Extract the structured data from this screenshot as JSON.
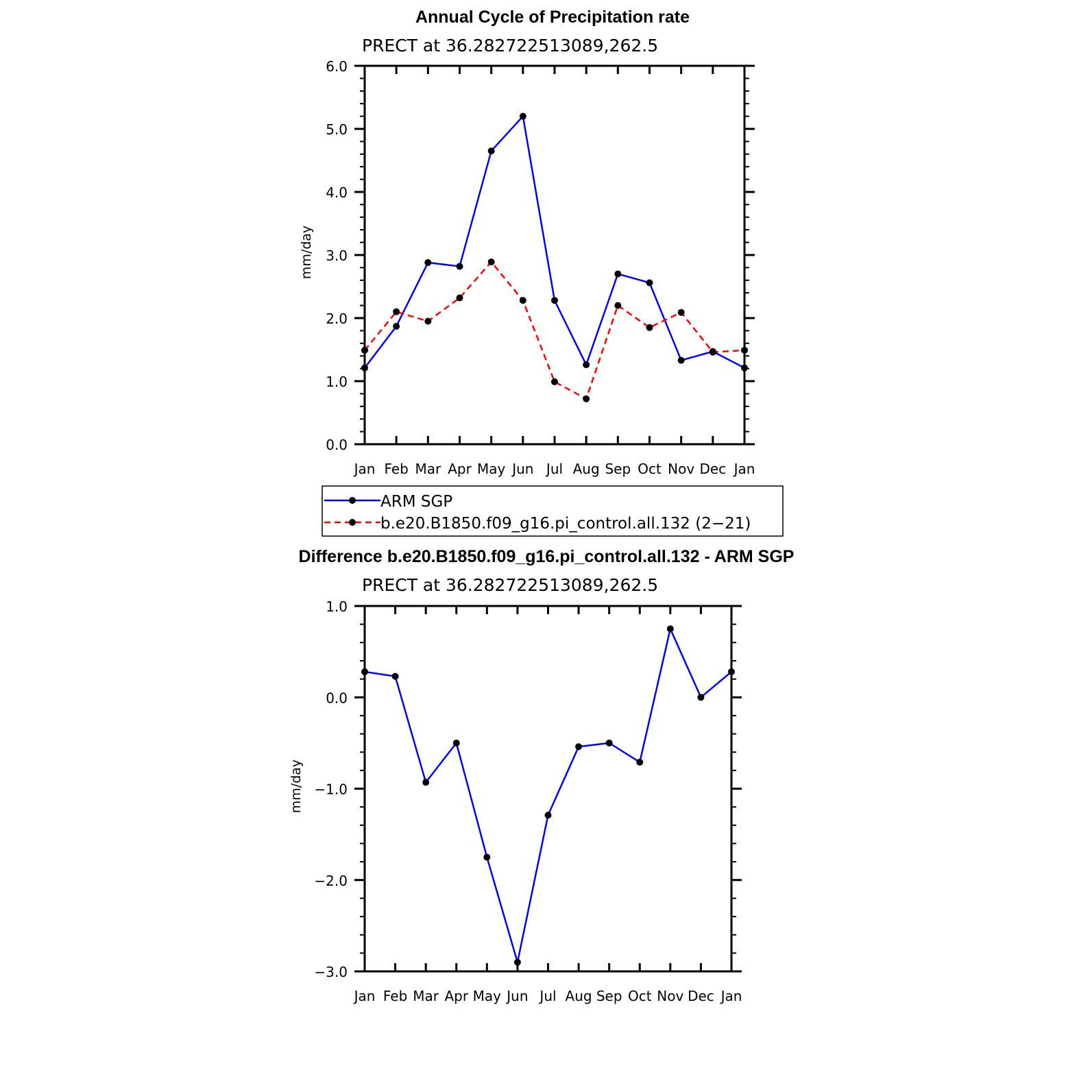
{
  "chart_data": [
    {
      "type": "line",
      "title": "Annual Cycle of Precipitation rate",
      "subtitle": "PRECT at 36.282722513089,262.5",
      "ylabel": "mm/day",
      "xlabel": "",
      "categories": [
        "Jan",
        "Feb",
        "Mar",
        "Apr",
        "May",
        "Jun",
        "Jul",
        "Aug",
        "Sep",
        "Oct",
        "Nov",
        "Dec",
        "Jan"
      ],
      "ylim": [
        0.0,
        6.0
      ],
      "yticks": [
        "0.0",
        "1.0",
        "2.0",
        "3.0",
        "4.0",
        "5.0",
        "6.0"
      ],
      "grid": false,
      "legend": "below",
      "series": [
        {
          "name": "ARM SGP",
          "color": "#0000ff",
          "dash": "solid",
          "values": [
            1.21,
            1.87,
            2.88,
            2.82,
            4.65,
            5.2,
            2.28,
            1.26,
            2.7,
            2.56,
            1.33,
            1.47,
            1.21
          ]
        },
        {
          "name": "b.e20.B1850.f09_g16.pi_control.all.132 (2−21)",
          "color": "#ff0000",
          "dash": "dashed",
          "values": [
            1.49,
            2.1,
            1.95,
            2.32,
            2.89,
            2.28,
            0.99,
            0.72,
            2.2,
            1.85,
            2.09,
            1.46,
            1.49
          ]
        }
      ]
    },
    {
      "type": "line",
      "title": "Difference b.e20.B1850.f09_g16.pi_control.all.132 - ARM SGP",
      "subtitle": "PRECT at 36.282722513089,262.5",
      "ylabel": "mm/day",
      "xlabel": "",
      "categories": [
        "Jan",
        "Feb",
        "Mar",
        "Apr",
        "May",
        "Jun",
        "Jul",
        "Aug",
        "Sep",
        "Oct",
        "Nov",
        "Dec",
        "Jan"
      ],
      "ylim": [
        -3.0,
        1.0
      ],
      "yticks": [
        "−3.0",
        "−2.0",
        "−1.0",
        "0.0",
        "1.0"
      ],
      "grid": false,
      "series": [
        {
          "color": "#0000ff",
          "dash": "solid",
          "values": [
            0.28,
            0.23,
            -0.93,
            -0.5,
            -1.75,
            -2.9,
            -1.29,
            -0.54,
            -0.5,
            -0.71,
            0.75,
            0.0,
            0.28
          ]
        }
      ]
    }
  ]
}
